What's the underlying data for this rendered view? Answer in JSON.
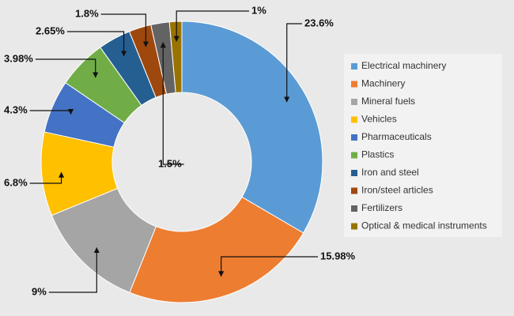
{
  "chart_data": {
    "type": "donut",
    "categories": [
      "Electrical machinery",
      "Machinery",
      "Mineral fuels",
      "Vehicles",
      "Pharmaceuticals",
      "Plastics",
      "Iron and steel",
      "Iron/steel articles",
      "Fertilizers",
      "Optical & medical instruments"
    ],
    "values": [
      23.6,
      15.98,
      9,
      6.8,
      4.3,
      3.98,
      2.65,
      1.8,
      1.5,
      1
    ],
    "value_labels": [
      "23.6%",
      "15.98%",
      "9%",
      "6.8%",
      "4.3%",
      "3.98%",
      "2.65%",
      "1.8%",
      "1.5%",
      "1%"
    ],
    "colors": [
      "#5b9bd5",
      "#ed7d31",
      "#a5a5a5",
      "#ffc000",
      "#4472c4",
      "#70ad47",
      "#255e91",
      "#9e480e",
      "#636363",
      "#997300"
    ],
    "legend": "right"
  }
}
